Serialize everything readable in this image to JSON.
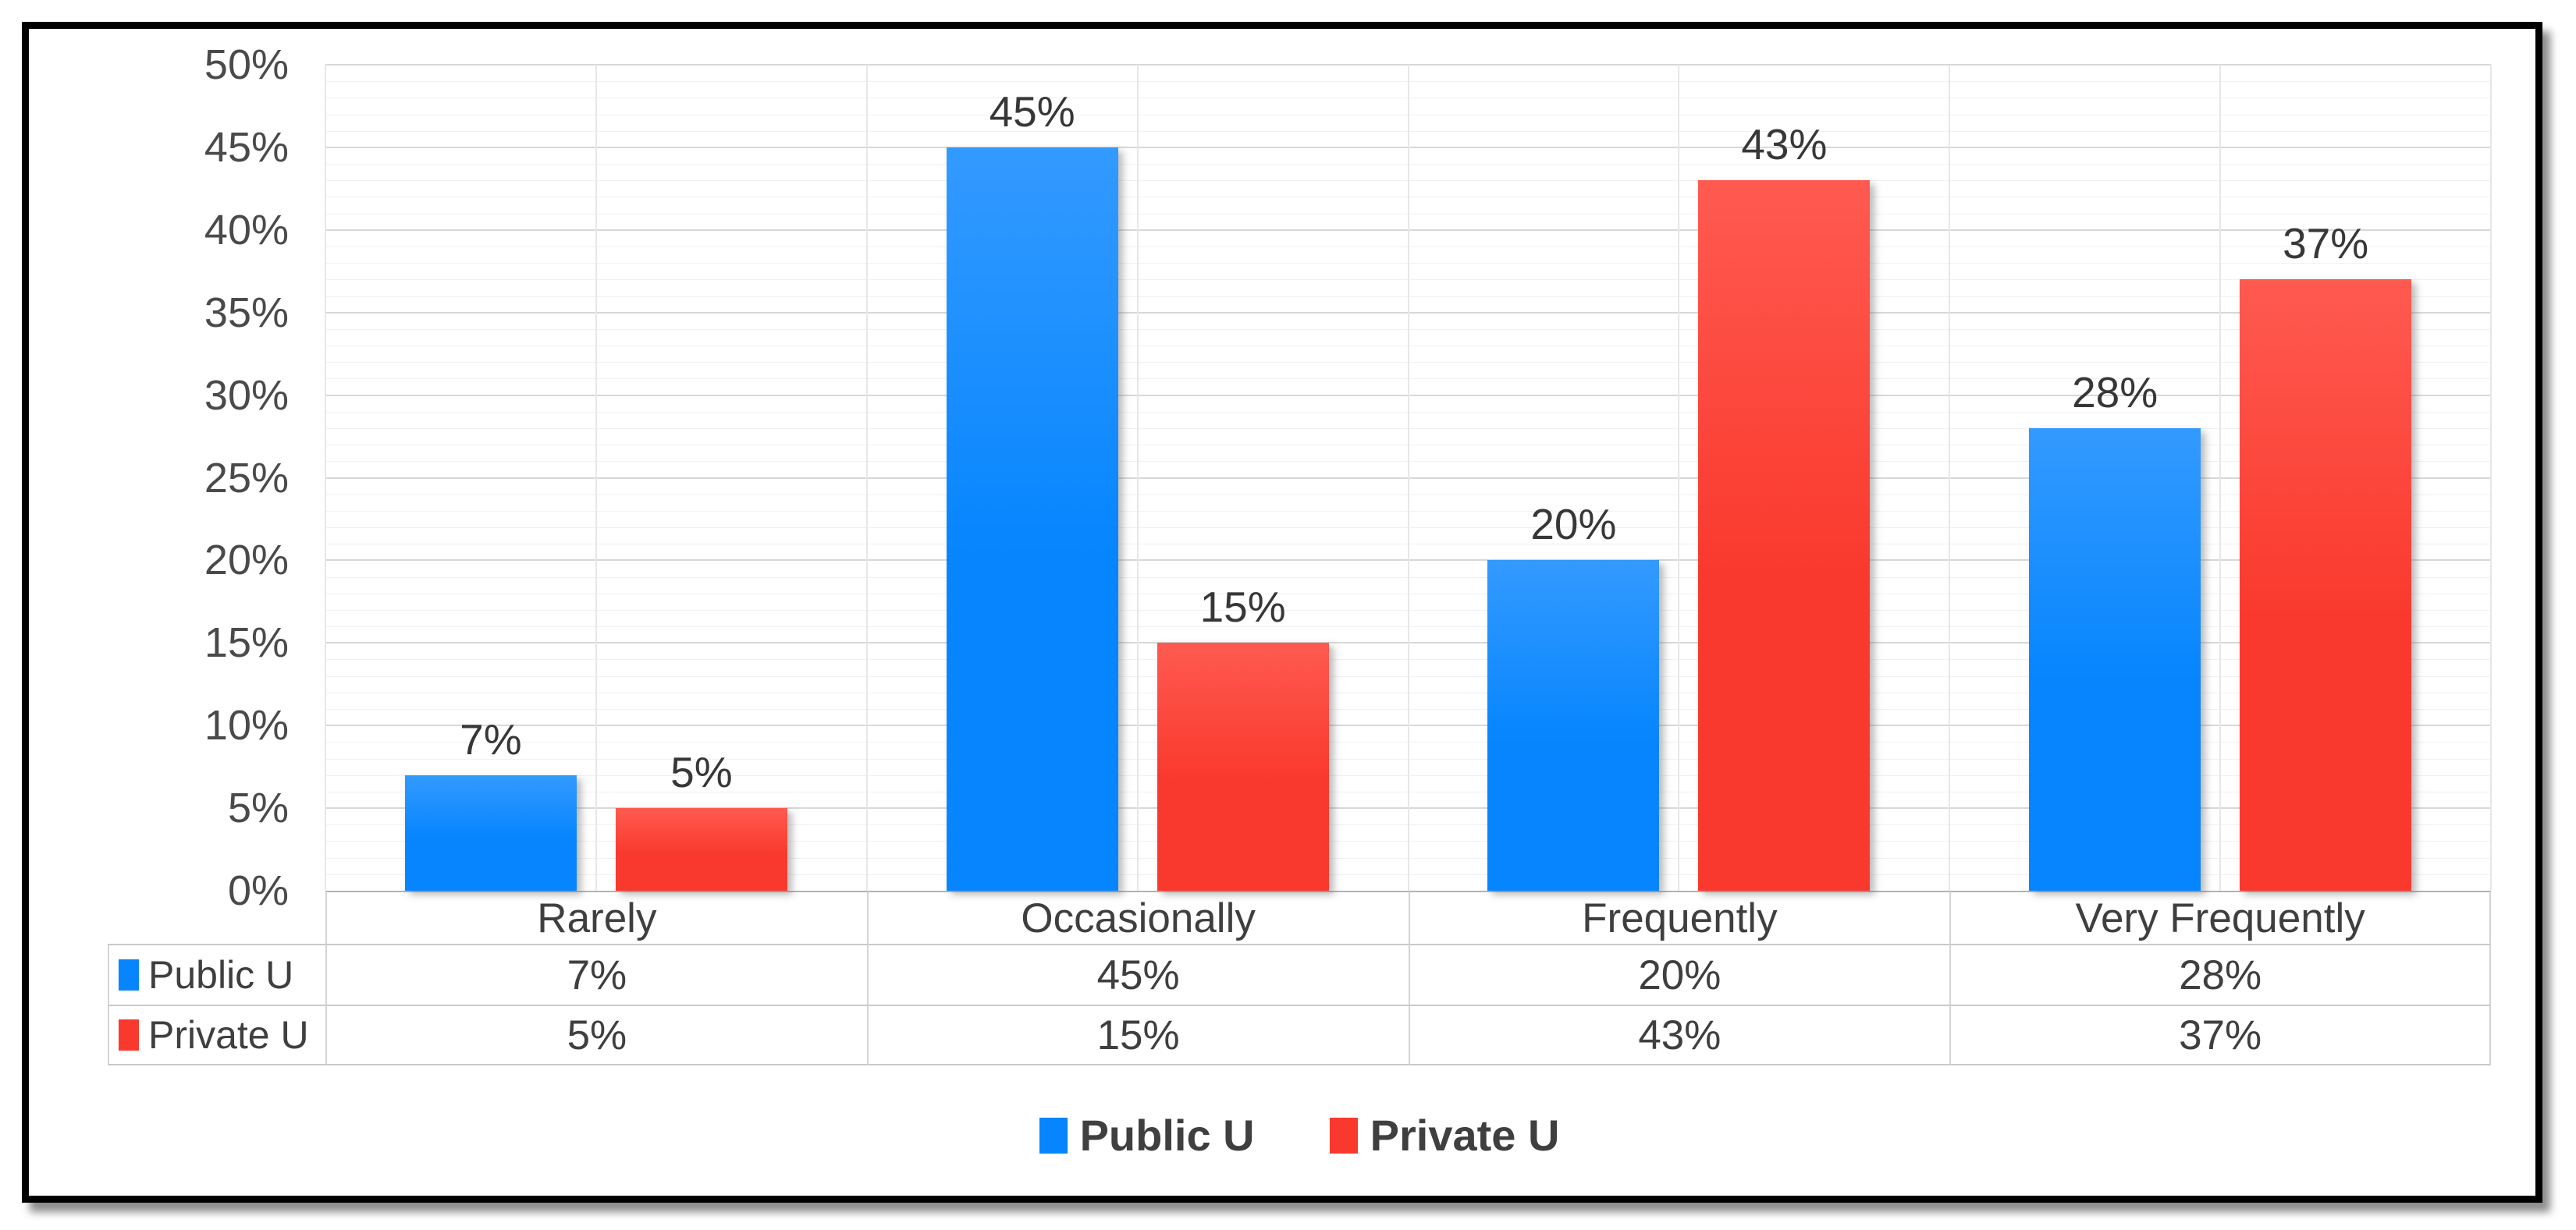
{
  "chart_data": {
    "type": "bar",
    "title": "",
    "xlabel": "",
    "ylabel": "",
    "categories": [
      "Rarely",
      "Occasionally",
      "Frequently",
      "Very Frequently"
    ],
    "series": [
      {
        "name": "Public U",
        "color": "#0685FE",
        "color_light": "#339AFF",
        "values": [
          7,
          45,
          20,
          28
        ]
      },
      {
        "name": "Private U",
        "color": "#FA392E",
        "color_light": "#FF5A50",
        "values": [
          5,
          15,
          43,
          37
        ]
      }
    ],
    "value_suffix": "%",
    "data_labels": [
      [
        "7%",
        "45%",
        "20%",
        "28%"
      ],
      [
        "5%",
        "15%",
        "43%",
        "37%"
      ]
    ],
    "ylim": [
      0,
      50
    ],
    "y_major_step": 5,
    "y_minor_step": 1,
    "y_tick_labels": [
      "50%",
      "45%",
      "40%",
      "35%",
      "30%",
      "25%",
      "20%",
      "15%",
      "10%",
      "5%",
      "0%"
    ],
    "grid": true,
    "legend_position": "bottom"
  },
  "table": {
    "column_headers": [
      "Rarely",
      "Occasionally",
      "Frequently",
      "Very Frequently"
    ],
    "row_headers": [
      "Public U",
      "Private U"
    ],
    "rows": [
      [
        "7%",
        "45%",
        "20%",
        "28%"
      ],
      [
        "5%",
        "15%",
        "43%",
        "37%"
      ]
    ]
  },
  "legend": {
    "items": [
      "Public U",
      "Private U"
    ]
  },
  "colors": {
    "public_u": "#0685FE",
    "private_u": "#FA392E",
    "text": "#3F3F3F",
    "grid_major": "#D8D8D8",
    "grid_minor": "#F1F1F1",
    "grid_vertical": "#E7E7E7",
    "axis_line": "#B3B3B3",
    "frame_border": "#000000"
  }
}
